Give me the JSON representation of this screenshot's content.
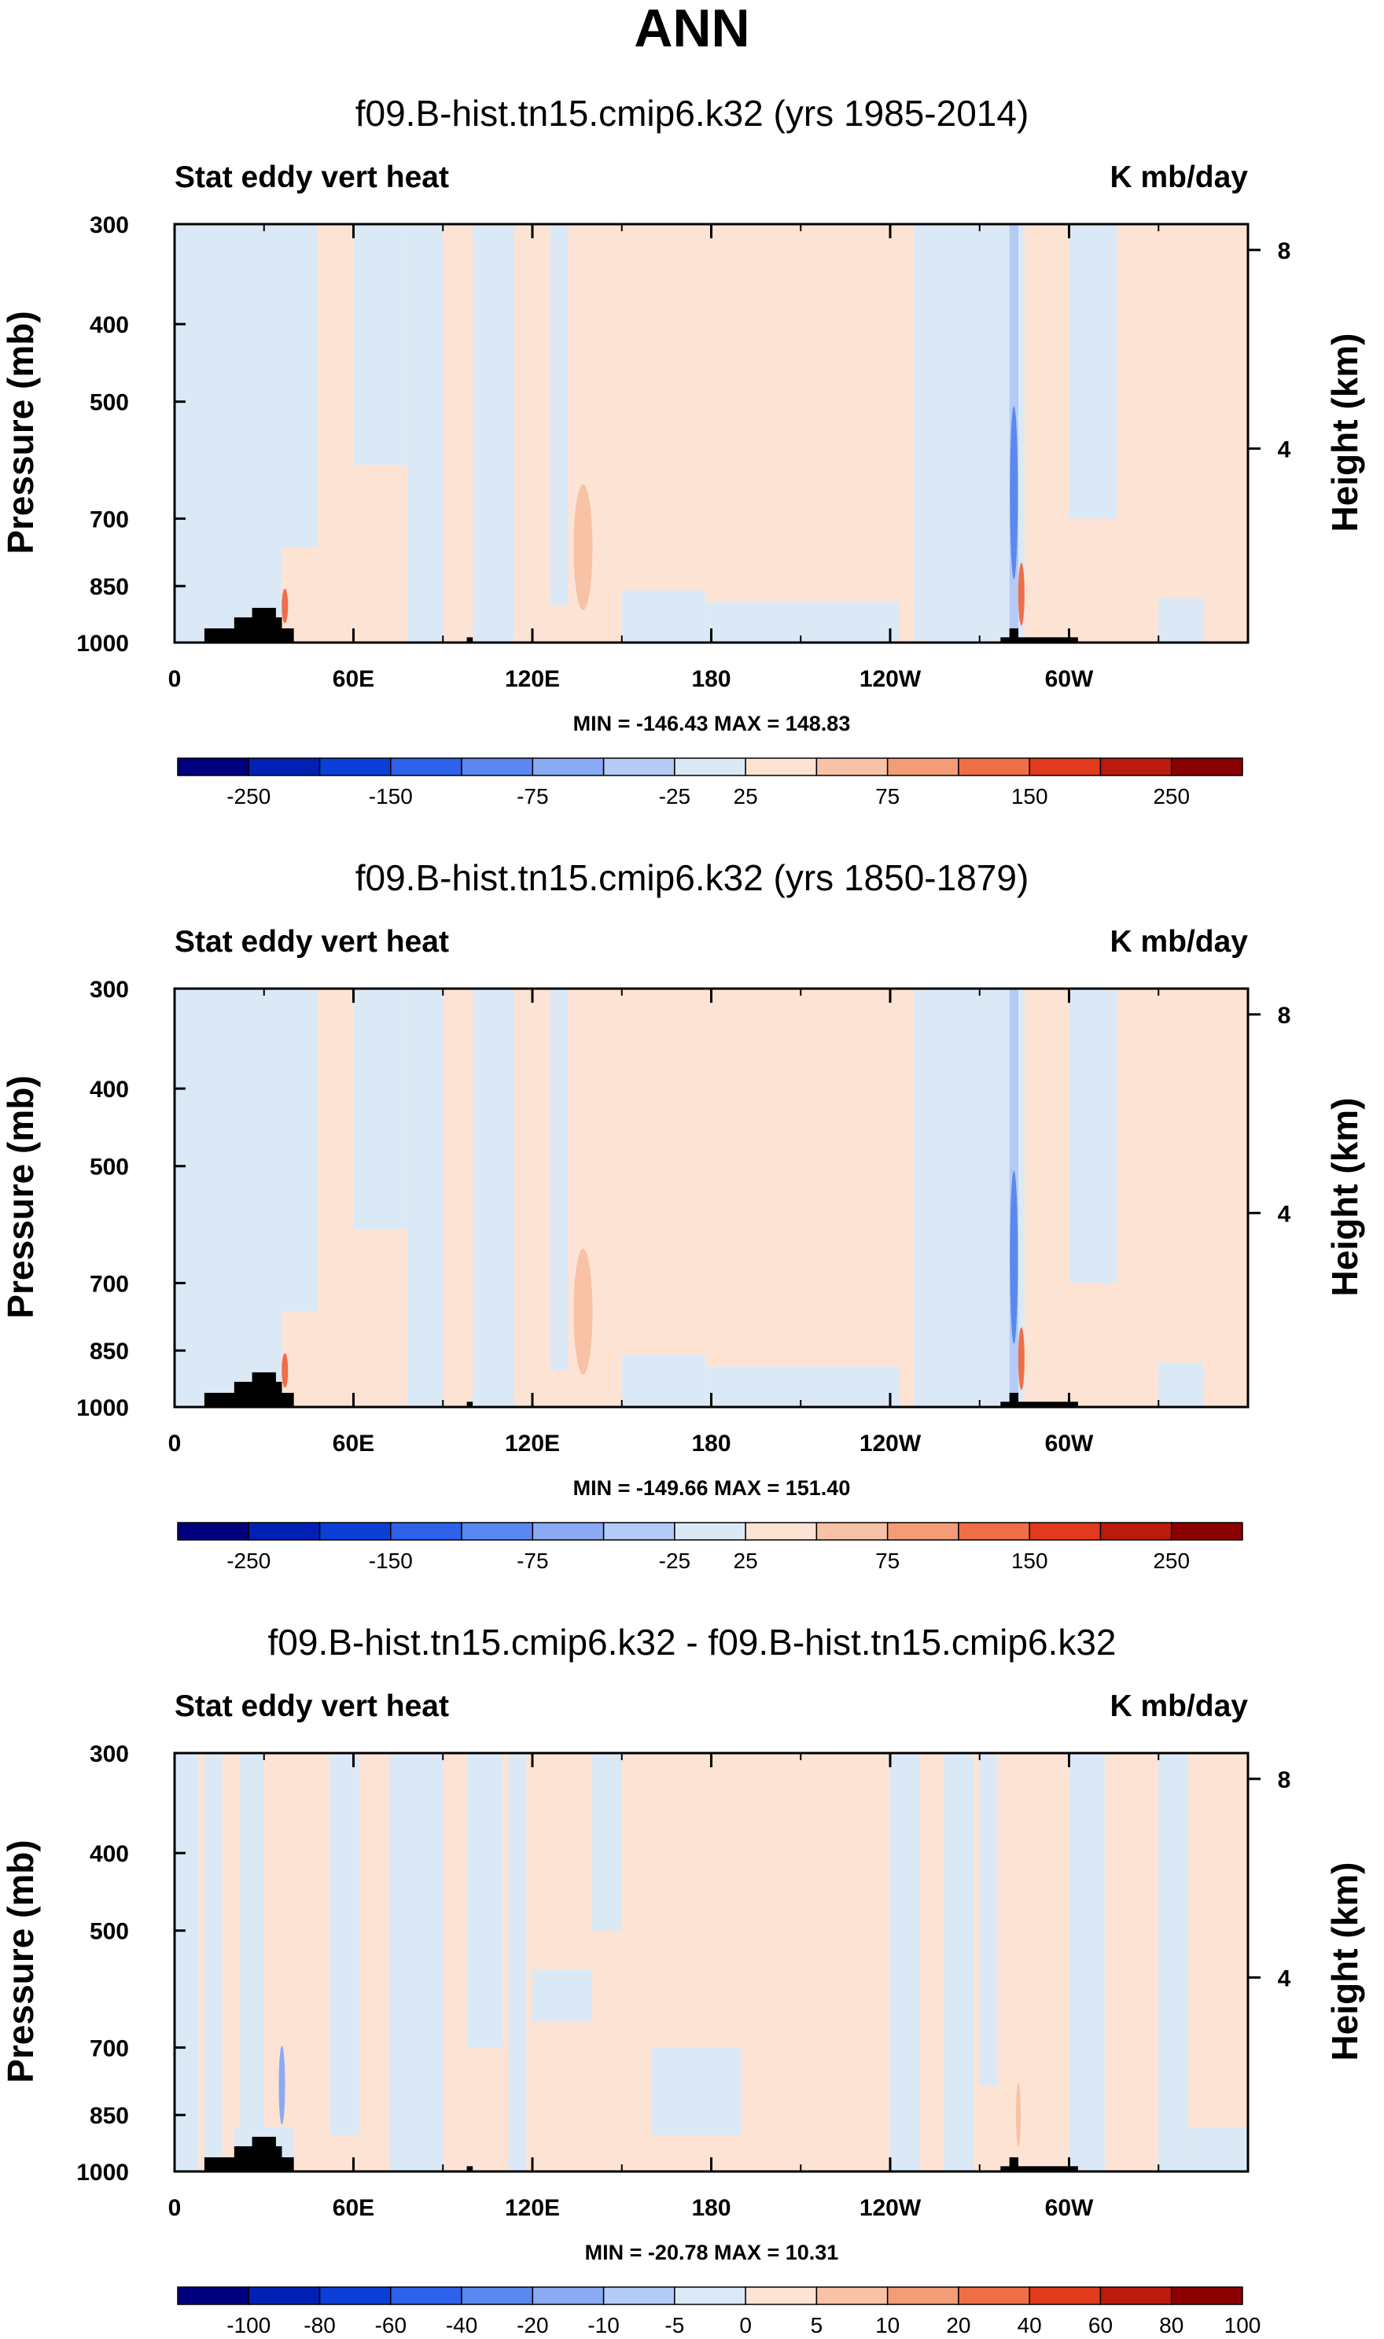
{
  "main_title": "ANN",
  "colors": {
    "neg_small": "#dbe9f7",
    "pos_small": "#fde3d3",
    "land": "#000000",
    "scale": [
      "#00007f",
      "#0020b4",
      "#0c3fd8",
      "#2e62ea",
      "#5b87f0",
      "#8aabf3",
      "#b3cbf6",
      "#dbe9f7",
      "#fde3d3",
      "#f8c2a6",
      "#f39c78",
      "#ee6e48",
      "#e13a1c",
      "#bb1a0c",
      "#8b0000"
    ]
  },
  "chart_data": [
    {
      "type": "contour",
      "title": "f09.B-hist.tn15.cmip6.k32 (yrs 1985-2014)",
      "left_label": "Stat eddy vert heat",
      "right_label": "K mb/day",
      "ylabel": "Pressure (mb)",
      "ylabel_right": "Height (km)",
      "x_ticks": [
        "0",
        "60E",
        "120E",
        "180",
        "120W",
        "60W"
      ],
      "y_ticks": [
        "300",
        "400",
        "500",
        "700",
        "850",
        "1000"
      ],
      "y_ticks_right": [
        "8",
        "4"
      ],
      "minmax": "MIN = -146.43   MAX = 148.83",
      "min": -146.43,
      "max": 148.83,
      "colorbar_labels": [
        "-250",
        "-150",
        "-75",
        "-25",
        "25",
        "75",
        "150",
        "250"
      ]
    },
    {
      "type": "contour",
      "title": "f09.B-hist.tn15.cmip6.k32 (yrs 1850-1879)",
      "left_label": "Stat eddy vert heat",
      "right_label": "K mb/day",
      "ylabel": "Pressure (mb)",
      "ylabel_right": "Height (km)",
      "x_ticks": [
        "0",
        "60E",
        "120E",
        "180",
        "120W",
        "60W"
      ],
      "y_ticks": [
        "300",
        "400",
        "500",
        "700",
        "850",
        "1000"
      ],
      "y_ticks_right": [
        "8",
        "4"
      ],
      "minmax": "MIN = -149.66   MAX = 151.40",
      "min": -149.66,
      "max": 151.4,
      "colorbar_labels": [
        "-250",
        "-150",
        "-75",
        "-25",
        "25",
        "75",
        "150",
        "250"
      ]
    },
    {
      "type": "contour",
      "title": "f09.B-hist.tn15.cmip6.k32 - f09.B-hist.tn15.cmip6.k32",
      "left_label": "Stat eddy vert heat",
      "right_label": "K mb/day",
      "ylabel": "Pressure (mb)",
      "ylabel_right": "Height (km)",
      "x_ticks": [
        "0",
        "60E",
        "120E",
        "180",
        "120W",
        "60W"
      ],
      "y_ticks": [
        "300",
        "400",
        "500",
        "700",
        "850",
        "1000"
      ],
      "y_ticks_right": [
        "8",
        "4"
      ],
      "minmax": "MIN = -20.78   MAX = 10.31",
      "min": -20.78,
      "max": 10.31,
      "colorbar_labels": [
        "-100",
        "-80",
        "-60",
        "-40",
        "-20",
        "-10",
        "-5",
        "0",
        "5",
        "10",
        "20",
        "40",
        "60",
        "80",
        "100"
      ]
    }
  ]
}
